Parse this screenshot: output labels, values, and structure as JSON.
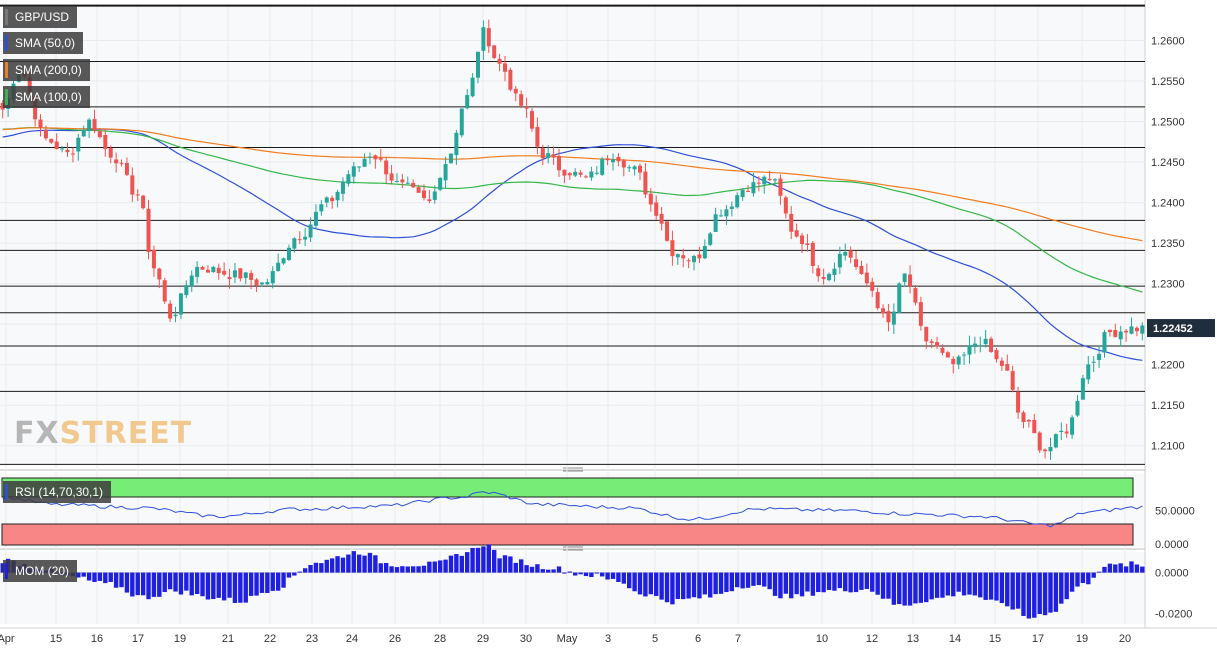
{
  "legend": {
    "symbol": "GBP/USD",
    "sma50": "SMA (50,0)",
    "sma200": "SMA (200,0)",
    "sma100": "SMA (100,0)",
    "rsi": "RSI (14,70,30,1)",
    "mom": "MOM (20)"
  },
  "logo": {
    "part1": "FX",
    "part2": "STREET"
  },
  "colors": {
    "up": "#26a69a",
    "down": "#ef5350",
    "sma50": "#2f4fd8",
    "sma200": "#f07e22",
    "sma100": "#35b54a",
    "rsi_line": "#2f4fd8",
    "rsi_overbought": "#77ec77",
    "rsi_oversold": "#f88686",
    "mom_bars": "#1f1fe0"
  },
  "chart_data": [
    {
      "type": "candlestick",
      "symbol": "GBP/USD",
      "ylim": [
        1.2075,
        1.2645
      ],
      "y_ticks": [
        "1.2600",
        "1.2550",
        "1.2500",
        "1.2450",
        "1.2400",
        "1.2350",
        "1.2300",
        "1.2250",
        "1.2200",
        "1.2150",
        "1.2100"
      ],
      "last_price": "1.22452",
      "x_labels": [
        "Apr",
        "15",
        "16",
        "17",
        "19",
        "21",
        "22",
        "23",
        "24",
        "26",
        "28",
        "29",
        "30",
        "May",
        "3",
        "5",
        "6",
        "7",
        "10",
        "12",
        "13",
        "14",
        "15",
        "17",
        "19",
        "20"
      ],
      "horizontal_levels": [
        1.2643,
        1.2574,
        1.2518,
        1.2468,
        1.2378,
        1.2341,
        1.2297,
        1.2264,
        1.2223,
        1.2167,
        1.2077
      ],
      "anchors": [
        [
          0,
          1.2515
        ],
        [
          3,
          1.2565
        ],
        [
          8,
          1.2478
        ],
        [
          12,
          1.246
        ],
        [
          16,
          1.25
        ],
        [
          20,
          1.246
        ],
        [
          25,
          1.241
        ],
        [
          28,
          1.232
        ],
        [
          31,
          1.226
        ],
        [
          36,
          1.232
        ],
        [
          44,
          1.231
        ],
        [
          48,
          1.23
        ],
        [
          55,
          1.236
        ],
        [
          60,
          1.24
        ],
        [
          65,
          1.244
        ],
        [
          68,
          1.246
        ],
        [
          74,
          1.242
        ],
        [
          79,
          1.24
        ],
        [
          82,
          1.245
        ],
        [
          86,
          1.253
        ],
        [
          89,
          1.261
        ],
        [
          92,
          1.257
        ],
        [
          96,
          1.252
        ],
        [
          100,
          1.246
        ],
        [
          104,
          1.244
        ],
        [
          108,
          1.243
        ],
        [
          113,
          1.246
        ],
        [
          117,
          1.244
        ],
        [
          121,
          1.239
        ],
        [
          124,
          1.234
        ],
        [
          128,
          1.233
        ],
        [
          133,
          1.239
        ],
        [
          138,
          1.242
        ],
        [
          142,
          1.243
        ],
        [
          147,
          1.236
        ],
        [
          152,
          1.231
        ],
        [
          156,
          1.234
        ],
        [
          160,
          1.23
        ],
        [
          164,
          1.225
        ],
        [
          167,
          1.231
        ],
        [
          171,
          1.223
        ],
        [
          176,
          1.22
        ],
        [
          181,
          1.223
        ],
        [
          185,
          1.22
        ],
        [
          189,
          1.213
        ],
        [
          193,
          1.2095
        ],
        [
          197,
          1.212
        ],
        [
          201,
          1.22
        ],
        [
          205,
          1.224
        ],
        [
          209,
          1.2245
        ],
        [
          211,
          1.2245
        ]
      ]
    },
    {
      "type": "line",
      "name": "RSI (14,70,30,1)",
      "ylim": [
        0,
        100
      ],
      "y_ticks": [
        "50.0000",
        "0.0000"
      ],
      "anchors": [
        [
          0,
          68
        ],
        [
          10,
          58
        ],
        [
          25,
          54
        ],
        [
          40,
          42
        ],
        [
          55,
          52
        ],
        [
          70,
          56
        ],
        [
          85,
          68
        ],
        [
          89,
          75
        ],
        [
          100,
          58
        ],
        [
          115,
          54
        ],
        [
          128,
          38
        ],
        [
          140,
          52
        ],
        [
          155,
          50
        ],
        [
          170,
          45
        ],
        [
          180,
          42
        ],
        [
          194,
          30
        ],
        [
          201,
          48
        ],
        [
          210,
          54
        ],
        [
          211,
          55
        ]
      ]
    },
    {
      "type": "bar",
      "name": "MOM (20)",
      "ylim": [
        -0.025,
        0.01
      ],
      "y_ticks": [
        "0.0000",
        "-0.0200"
      ],
      "anchors": [
        [
          0,
          0.006
        ],
        [
          6,
          0.003
        ],
        [
          12,
          -0.002
        ],
        [
          20,
          -0.006
        ],
        [
          26,
          -0.012
        ],
        [
          32,
          -0.009
        ],
        [
          38,
          -0.012
        ],
        [
          44,
          -0.014
        ],
        [
          50,
          -0.008
        ],
        [
          58,
          0.005
        ],
        [
          66,
          0.01
        ],
        [
          72,
          0.004
        ],
        [
          80,
          0.004
        ],
        [
          86,
          0.01
        ],
        [
          89,
          0.014
        ],
        [
          93,
          0.007
        ],
        [
          100,
          0.003
        ],
        [
          108,
          -0.001
        ],
        [
          114,
          -0.004
        ],
        [
          118,
          -0.01
        ],
        [
          124,
          -0.014
        ],
        [
          130,
          -0.012
        ],
        [
          138,
          -0.006
        ],
        [
          146,
          -0.012
        ],
        [
          152,
          -0.009
        ],
        [
          160,
          -0.008
        ],
        [
          166,
          -0.016
        ],
        [
          172,
          -0.013
        ],
        [
          178,
          -0.01
        ],
        [
          186,
          -0.016
        ],
        [
          190,
          -0.022
        ],
        [
          194,
          -0.019
        ],
        [
          200,
          -0.006
        ],
        [
          204,
          0.003
        ],
        [
          209,
          0.004
        ],
        [
          211,
          0.003
        ]
      ]
    }
  ]
}
